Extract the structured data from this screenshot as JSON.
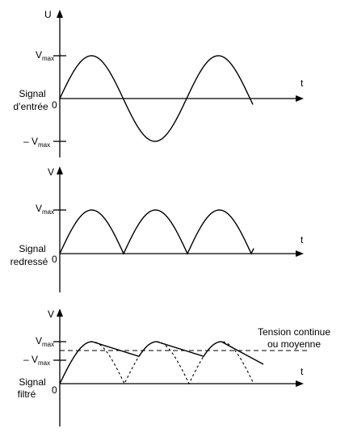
{
  "panel1": {
    "y_axis": "U",
    "x_axis": "t",
    "vmax": {
      "main": "V",
      "sub": "max"
    },
    "neg_vmax": {
      "prefix": "– V",
      "sub": "max"
    },
    "origin": "0",
    "signal_label": [
      "Signal",
      "d’entrée"
    ]
  },
  "panel2": {
    "y_axis": "V",
    "x_axis": "t",
    "vmax": {
      "main": "V",
      "sub": "max"
    },
    "origin": "0",
    "signal_label": [
      "Signal",
      "redressé"
    ]
  },
  "panel3": {
    "y_axis": "V",
    "x_axis": "t",
    "vmax": {
      "main": "V",
      "sub": "max"
    },
    "neg_vmax": {
      "prefix": "– V",
      "sub": "max"
    },
    "origin": "0",
    "signal_label": [
      "Signal",
      "filtré"
    ],
    "average_label": [
      "Tension continue",
      "ou moyenne"
    ]
  }
}
